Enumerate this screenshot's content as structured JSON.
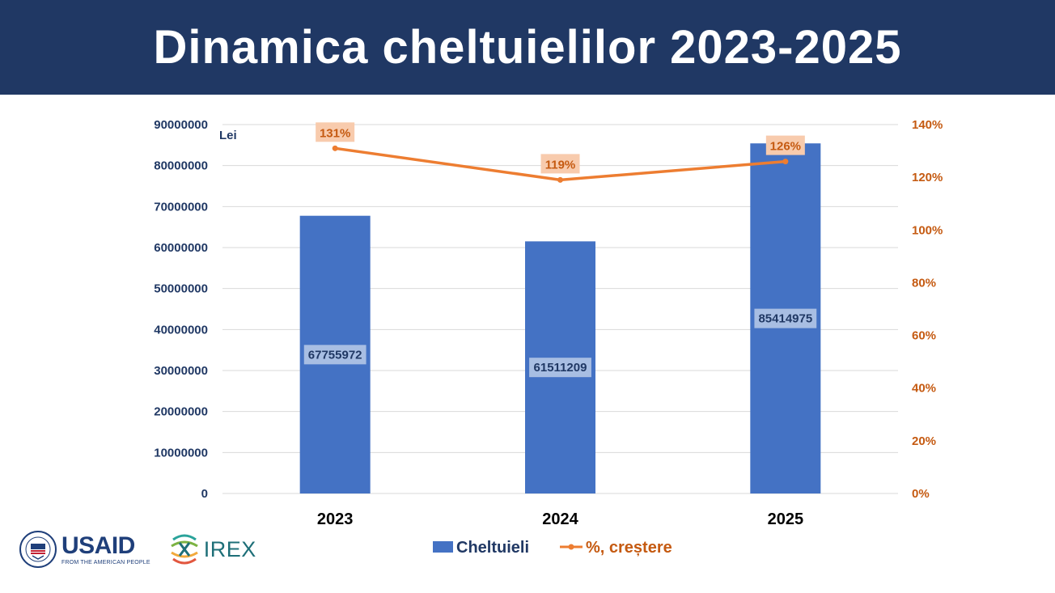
{
  "title": "Dinamica cheltuielilor 2023-2025",
  "chart_data": {
    "type": "bar",
    "categories": [
      "2023",
      "2024",
      "2025"
    ],
    "series": [
      {
        "name": "Cheltuieli",
        "type": "bar",
        "axis": "left",
        "values": [
          67755972,
          61511209,
          85414975
        ],
        "data_labels": [
          "67755972",
          "61511209",
          "85414975"
        ],
        "color": "#4472c4"
      },
      {
        "name": "%, creștere",
        "type": "line",
        "axis": "right",
        "values": [
          131,
          119,
          126
        ],
        "data_labels": [
          "131%",
          "119%",
          "126%"
        ],
        "color": "#ed7d31"
      }
    ],
    "ylabel": "Lei",
    "ylim": [
      0,
      90000000
    ],
    "y_ticks": [
      "0",
      "10000000",
      "20000000",
      "30000000",
      "40000000",
      "50000000",
      "60000000",
      "70000000",
      "80000000",
      "90000000"
    ],
    "y2lim": [
      0,
      140
    ],
    "y2_ticks": [
      "0%",
      "20%",
      "40%",
      "60%",
      "80%",
      "100%",
      "120%",
      "140%"
    ],
    "grid": true,
    "legend_position": "bottom"
  },
  "logos": {
    "usaid_word": "USAID",
    "usaid_tagline": "FROM THE AMERICAN PEOPLE",
    "irex_word": "IREX"
  }
}
